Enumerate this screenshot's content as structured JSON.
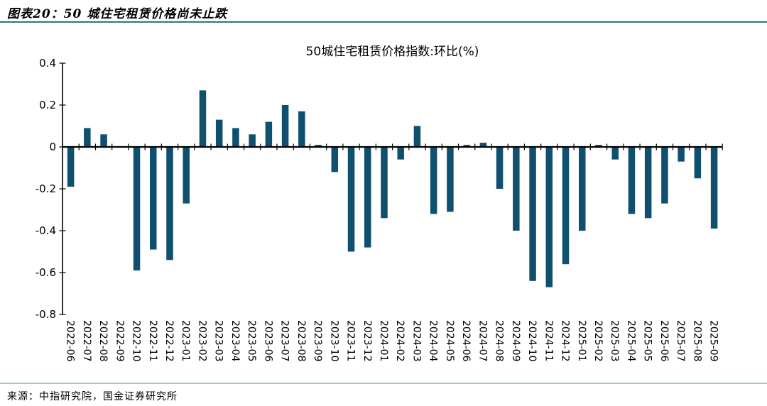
{
  "header": {
    "title": "图表20：50 城住宅租赁价格尚未止跌"
  },
  "chart_data": {
    "type": "bar",
    "title": "50城住宅租赁价格指数:环比(%)",
    "xlabel": "",
    "ylabel": "",
    "ylim": [
      -0.8,
      0.4
    ],
    "ytick_interval": 0.2,
    "ytick_labels": [
      "0.4",
      "0.2",
      "0",
      "-0.2",
      "-0.4",
      "-0.6",
      "-0.8"
    ],
    "grid": false,
    "legend": false,
    "bar_color": "#0F506F",
    "axis_color": "#000000",
    "categories": [
      "2022-06",
      "2022-07",
      "2022-08",
      "2022-09",
      "2022-10",
      "2022-11",
      "2022-12",
      "2023-01",
      "2023-02",
      "2023-03",
      "2023-04",
      "2023-05",
      "2023-06",
      "2023-07",
      "2023-08",
      "2023-09",
      "2023-10",
      "2023-11",
      "2023-12",
      "2024-01",
      "2024-02",
      "2024-03",
      "2024-04",
      "2024-05",
      "2024-06",
      "2024-07",
      "2024-08",
      "2024-09",
      "2024-10",
      "2024-11",
      "2024-12",
      "2025-01",
      "2025-02",
      "2025-03",
      "2025-04",
      "2025-05",
      "2025-06",
      "2025-07",
      "2025-08",
      "2025-09"
    ],
    "values": [
      -0.19,
      0.09,
      0.06,
      0.0,
      -0.59,
      -0.49,
      -0.54,
      -0.27,
      0.27,
      0.13,
      0.09,
      0.06,
      0.12,
      0.2,
      0.17,
      0.01,
      -0.12,
      -0.5,
      -0.48,
      -0.34,
      -0.06,
      0.1,
      -0.32,
      -0.31,
      0.01,
      0.02,
      -0.2,
      -0.4,
      -0.64,
      -0.67,
      -0.56,
      -0.4,
      0.01,
      -0.06,
      -0.32,
      -0.34,
      -0.27,
      -0.07,
      -0.15,
      -0.39
    ]
  },
  "footer": {
    "source": "来源：中指研究院，国金证券研究所"
  },
  "colors": {
    "header_rule": "#337389",
    "footer_rule": "#A9C4D2",
    "bar": "#0F506F"
  }
}
